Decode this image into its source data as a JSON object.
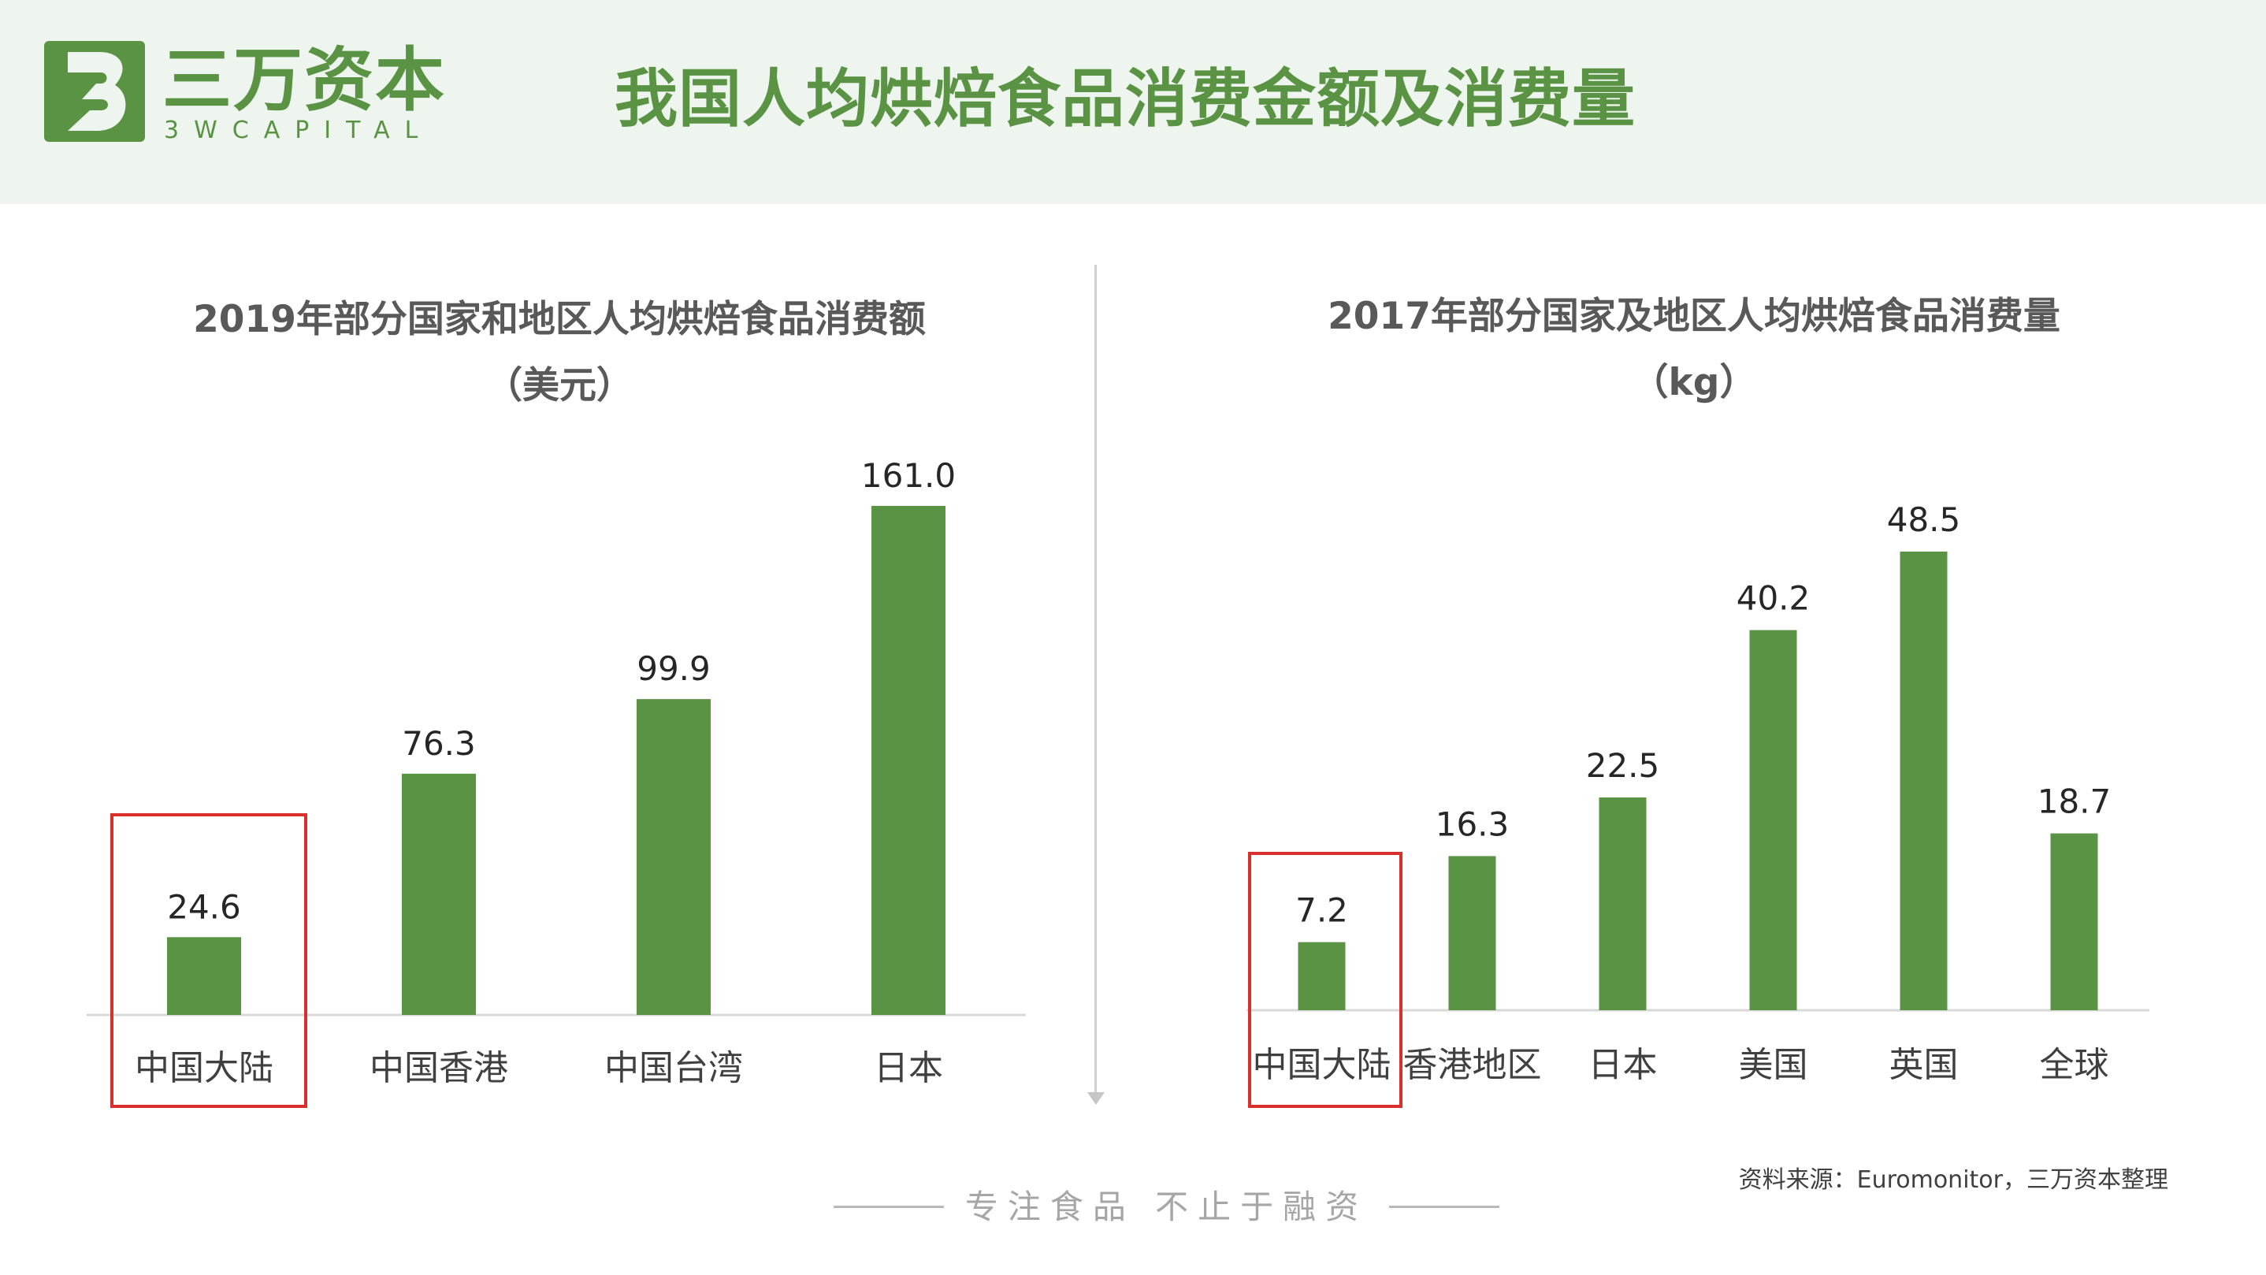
{
  "brand": {
    "name_cn": "三万资本",
    "name_en": "3WCAPITAL",
    "color": "#5a9344"
  },
  "page_title": "我国人均烘焙食品消费金额及消费量",
  "footer": {
    "slogan": "专注食品 不止于融资",
    "source": "资料来源：Euromonitor，三万资本整理"
  },
  "icons": {
    "logo": "three-w-capital-logo-mark"
  },
  "colors": {
    "bar": "#5a9344",
    "highlight": "#d9302c",
    "header_bg": "#eef5ee"
  },
  "chart_data": [
    {
      "type": "bar",
      "title": "2019年部分国家和地区人均烘焙食品消费额",
      "unit": "（美元）",
      "categories": [
        "中国大陆",
        "中国香港",
        "中国台湾",
        "日本"
      ],
      "values": [
        24.6,
        76.3,
        99.9,
        161.0
      ],
      "value_labels": [
        "24.6",
        "76.3",
        "99.9",
        "161.0"
      ],
      "ylim": [
        0,
        161.0
      ],
      "grid": false,
      "legend": "none",
      "highlighted_category": "中国大陆"
    },
    {
      "type": "bar",
      "title": "2017年部分国家及地区人均烘焙食品消费量",
      "unit": "（kg）",
      "categories": [
        "中国大陆",
        "香港地区",
        "日本",
        "美国",
        "英国",
        "全球"
      ],
      "values": [
        7.2,
        16.3,
        22.5,
        40.2,
        48.5,
        18.7
      ],
      "value_labels": [
        "7.2",
        "16.3",
        "22.5",
        "40.2",
        "48.5",
        "18.7"
      ],
      "ylim": [
        0,
        48.5
      ],
      "grid": false,
      "legend": "none",
      "highlighted_category": "中国大陆"
    }
  ]
}
